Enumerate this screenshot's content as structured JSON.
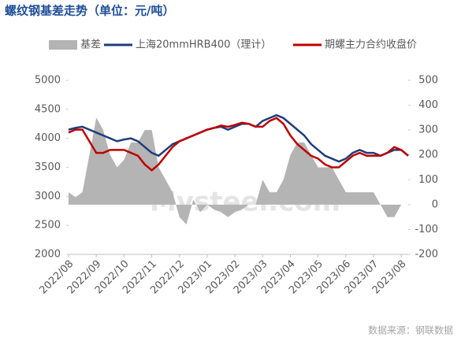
{
  "chart_data": {
    "type": "line",
    "title": "螺纹钢基差走势（单位：元/吨）",
    "watermark": "Mysteel.com",
    "source": "数据来源：钢联数据",
    "categories": [
      "2022/08",
      null,
      null,
      null,
      "2022/09",
      null,
      null,
      null,
      "2022/10",
      null,
      null,
      null,
      "2022/11",
      null,
      null,
      null,
      "2022/12",
      null,
      null,
      null,
      "2023/01",
      null,
      null,
      null,
      "2023/02",
      null,
      null,
      null,
      "2023/03",
      null,
      null,
      null,
      "2023/04",
      null,
      null,
      null,
      "2023/05",
      null,
      null,
      null,
      "2023/06",
      null,
      null,
      null,
      "2023/07",
      null,
      null,
      null,
      "2023/08",
      null
    ],
    "series": [
      {
        "name": "基差",
        "type": "area",
        "axis": "y2",
        "color": "#b4b4b4",
        "values": [
          50,
          30,
          50,
          200,
          350,
          300,
          200,
          150,
          180,
          250,
          250,
          300,
          300,
          150,
          100,
          50,
          -50,
          -80,
          20,
          -30,
          0,
          -20,
          -30,
          -50,
          -30,
          -20,
          0,
          0,
          100,
          50,
          50,
          100,
          200,
          250,
          250,
          200,
          150,
          150,
          150,
          100,
          50,
          50,
          50,
          50,
          50,
          0,
          -50,
          -50,
          0,
          0
        ]
      },
      {
        "name": "上海20mmHRB400（理计）",
        "color": "#1f3d7a",
        "values": [
          4150,
          4180,
          4200,
          4150,
          4100,
          4050,
          4000,
          3950,
          3980,
          4000,
          3950,
          3850,
          3750,
          3700,
          3800,
          3900,
          3950,
          4000,
          4050,
          4100,
          4150,
          4180,
          4200,
          4150,
          4200,
          4250,
          4250,
          4200,
          4300,
          4350,
          4400,
          4350,
          4250,
          4150,
          4050,
          3900,
          3800,
          3700,
          3650,
          3600,
          3650,
          3750,
          3800,
          3750,
          3750,
          3700,
          3750,
          3800,
          3800,
          3700
        ]
      },
      {
        "name": "期螺主力合约收盘价",
        "color": "#c00000",
        "values": [
          4100,
          4150,
          4150,
          3950,
          3750,
          3750,
          3800,
          3800,
          3800,
          3750,
          3700,
          3550,
          3450,
          3550,
          3700,
          3850,
          3950,
          4000,
          4050,
          4100,
          4150,
          4180,
          4220,
          4200,
          4230,
          4270,
          4250,
          4200,
          4200,
          4300,
          4350,
          4250,
          4050,
          3900,
          3800,
          3700,
          3650,
          3550,
          3500,
          3500,
          3600,
          3700,
          3750,
          3700,
          3700,
          3700,
          3750,
          3850,
          3800,
          3700
        ]
      }
    ],
    "ylim": [
      2000,
      5000
    ],
    "yticks": [
      2000,
      2500,
      3000,
      3500,
      4000,
      4500,
      5000
    ],
    "y2lim": [
      -200,
      500
    ],
    "y2ticks": [
      -200,
      -100,
      0,
      100,
      200,
      300,
      400,
      500
    ]
  }
}
